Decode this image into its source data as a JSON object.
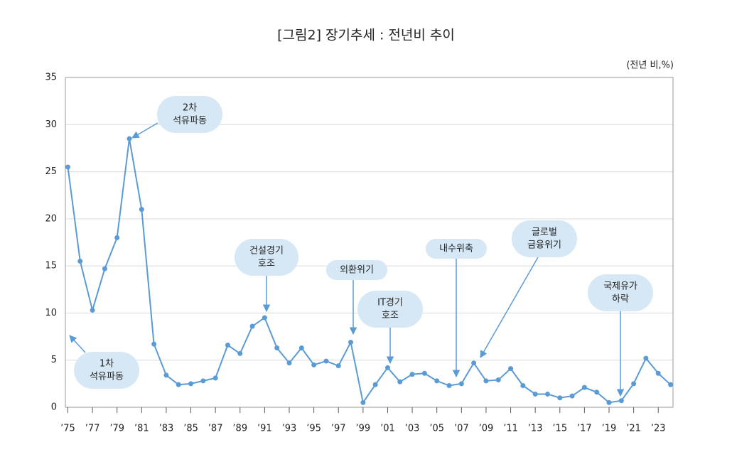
{
  "chart_data": {
    "type": "line",
    "title": "[그림2]  장기추세 : 전년비 추이",
    "unit": "(전년 비,%)",
    "x": [
      1975,
      1976,
      1977,
      1978,
      1979,
      1980,
      1981,
      1982,
      1983,
      1984,
      1985,
      1986,
      1987,
      1988,
      1989,
      1990,
      1991,
      1992,
      1993,
      1994,
      1995,
      1996,
      1997,
      1998,
      1999,
      2000,
      2001,
      2002,
      2003,
      2004,
      2005,
      2006,
      2007,
      2008,
      2009,
      2010,
      2011,
      2012,
      2013,
      2014,
      2015,
      2016,
      2017,
      2018,
      2019,
      2020,
      2021,
      2022,
      2023,
      2024
    ],
    "values": [
      25.5,
      15.5,
      10.3,
      14.7,
      18.0,
      28.5,
      21.0,
      6.7,
      3.4,
      2.4,
      2.5,
      2.8,
      3.1,
      6.6,
      5.7,
      8.6,
      9.5,
      6.3,
      4.7,
      6.3,
      4.5,
      4.9,
      4.4,
      6.9,
      0.5,
      2.4,
      4.2,
      2.7,
      3.5,
      3.6,
      2.8,
      2.3,
      2.5,
      4.7,
      2.8,
      2.9,
      4.1,
      2.3,
      1.4,
      1.4,
      1.0,
      1.2,
      2.1,
      1.6,
      0.5,
      0.7,
      2.5,
      5.2,
      3.6,
      2.4
    ],
    "color": "#5b9bd5",
    "xlim": [
      1974.8,
      2024.2
    ],
    "xticks": [
      {
        "value": 1975,
        "label": "’75"
      },
      {
        "value": 1977,
        "label": "’77"
      },
      {
        "value": 1979,
        "label": "’79"
      },
      {
        "value": 1981,
        "label": "’81"
      },
      {
        "value": 1983,
        "label": "’83"
      },
      {
        "value": 1985,
        "label": "’85"
      },
      {
        "value": 1987,
        "label": "’87"
      },
      {
        "value": 1989,
        "label": "’89"
      },
      {
        "value": 1991,
        "label": "’91"
      },
      {
        "value": 1993,
        "label": "’93"
      },
      {
        "value": 1995,
        "label": "’95"
      },
      {
        "value": 1997,
        "label": "’97"
      },
      {
        "value": 1999,
        "label": "’99"
      },
      {
        "value": 2001,
        "label": "’01"
      },
      {
        "value": 2003,
        "label": "’03"
      },
      {
        "value": 2005,
        "label": "’05"
      },
      {
        "value": 2007,
        "label": "’07"
      },
      {
        "value": 2009,
        "label": "’09"
      },
      {
        "value": 2011,
        "label": "’11"
      },
      {
        "value": 2013,
        "label": "’13"
      },
      {
        "value": 2015,
        "label": "’15"
      },
      {
        "value": 2017,
        "label": "’17"
      },
      {
        "value": 2019,
        "label": "’19"
      },
      {
        "value": 2021,
        "label": "’21"
      },
      {
        "value": 2023,
        "label": "’23"
      }
    ],
    "ylim": [
      0,
      35
    ],
    "yticks": [
      0,
      5,
      10,
      15,
      20,
      25,
      30,
      35
    ],
    "grid": true,
    "annotations": [
      {
        "lines": [
          "1차",
          "석유파동"
        ]
      },
      {
        "lines": [
          "2차",
          "석유파동"
        ]
      },
      {
        "lines": [
          "건설경기",
          "호조"
        ]
      },
      {
        "lines": [
          "외환위기"
        ]
      },
      {
        "lines": [
          "IT경기",
          "호조"
        ]
      },
      {
        "lines": [
          "내수위축"
        ]
      },
      {
        "lines": [
          "글로벌",
          "금융위기"
        ]
      },
      {
        "lines": [
          "국제유가",
          "하락"
        ]
      }
    ]
  }
}
